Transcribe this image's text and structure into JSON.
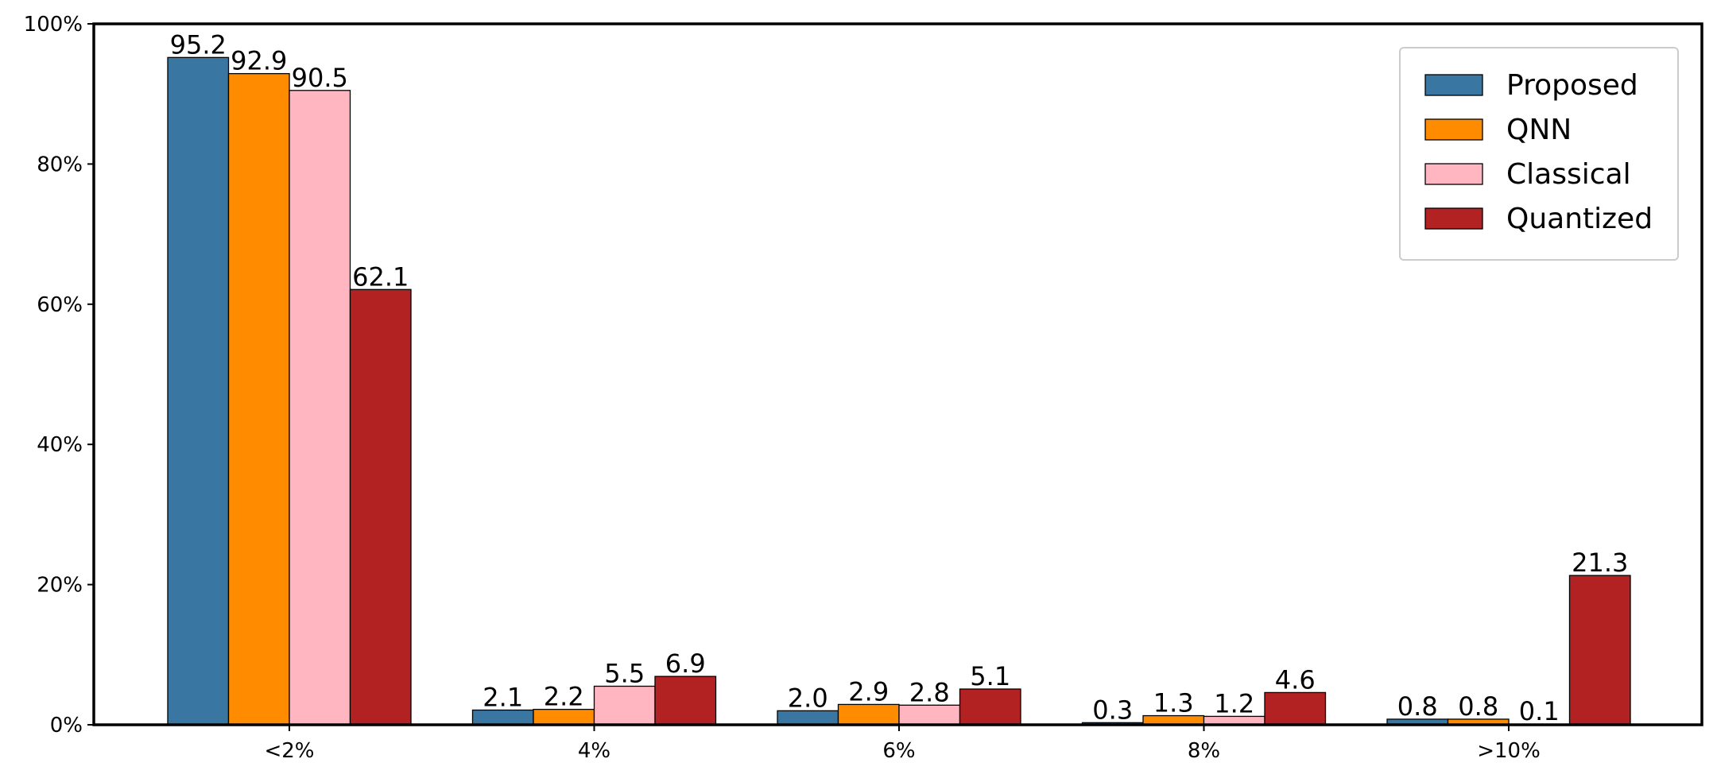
{
  "chart_data": {
    "type": "bar",
    "title": "",
    "xlabel": "",
    "ylabel": "",
    "categories": [
      "<2%",
      "4%",
      "6%",
      "8%",
      ">10%"
    ],
    "ylim": [
      0,
      100
    ],
    "yticks": [
      0,
      20,
      40,
      60,
      80,
      100
    ],
    "ytick_labels": [
      "0%",
      "20%",
      "40%",
      "60%",
      "80%",
      "100%"
    ],
    "grid": false,
    "legend_position": "top-right",
    "series": [
      {
        "name": "Proposed",
        "color": "#3a76a2",
        "values": [
          95.2,
          2.1,
          2.0,
          0.3,
          0.8
        ]
      },
      {
        "name": "QNN",
        "color": "#ff8c00",
        "values": [
          92.9,
          2.2,
          2.9,
          1.3,
          0.8
        ]
      },
      {
        "name": "Classical",
        "color": "#ffb6c1",
        "values": [
          90.5,
          5.5,
          2.8,
          1.2,
          0.1
        ]
      },
      {
        "name": "Quantized",
        "color": "#b22222",
        "values": [
          62.1,
          6.9,
          5.1,
          4.6,
          21.3
        ]
      }
    ]
  }
}
